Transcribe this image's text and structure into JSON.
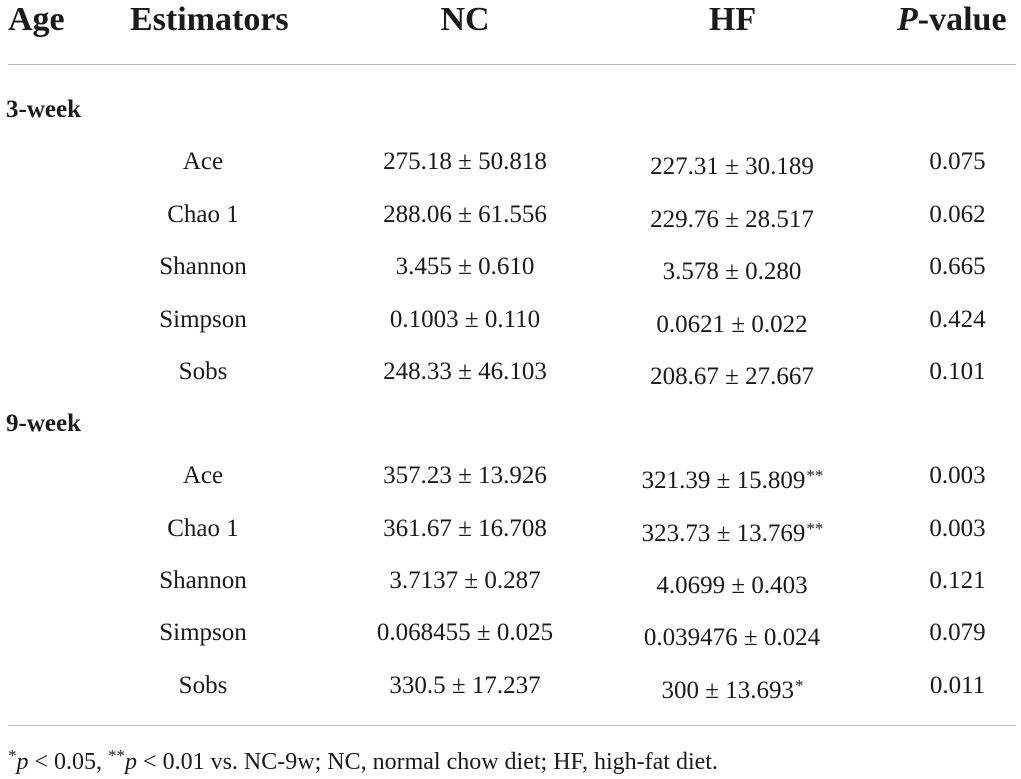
{
  "header": {
    "age": "Age",
    "estimators": "Estimators",
    "nc": "NC",
    "hf": "HF",
    "p_value_prefix": "P",
    "p_value_suffix": "-value"
  },
  "groups": [
    {
      "label": "3-week",
      "rows": [
        {
          "estimator": "Ace",
          "nc": "275.18 ± 50.818",
          "hf": "227.31 ± 30.189",
          "hf_mark": "",
          "p": "0.075"
        },
        {
          "estimator": "Chao 1",
          "nc": "288.06 ± 61.556",
          "hf": "229.76 ± 28.517",
          "hf_mark": "",
          "p": "0.062"
        },
        {
          "estimator": "Shannon",
          "nc": "3.455 ± 0.610",
          "hf": "3.578 ± 0.280",
          "hf_mark": "",
          "p": "0.665"
        },
        {
          "estimator": "Simpson",
          "nc": "0.1003 ± 0.110",
          "hf": "0.0621 ± 0.022",
          "hf_mark": "",
          "p": "0.424"
        },
        {
          "estimator": "Sobs",
          "nc": "248.33 ± 46.103",
          "hf": "208.67 ± 27.667",
          "hf_mark": "",
          "p": "0.101"
        }
      ]
    },
    {
      "label": "9-week",
      "rows": [
        {
          "estimator": "Ace",
          "nc": "357.23 ± 13.926",
          "hf": "321.39 ± 15.809",
          "hf_mark": "**",
          "p": "0.003"
        },
        {
          "estimator": "Chao 1",
          "nc": "361.67 ± 16.708",
          "hf": "323.73 ± 13.769",
          "hf_mark": "**",
          "p": "0.003"
        },
        {
          "estimator": "Shannon",
          "nc": "3.7137 ± 0.287",
          "hf": "4.0699 ± 0.403",
          "hf_mark": "",
          "p": "0.121"
        },
        {
          "estimator": "Simpson",
          "nc": "0.068455 ± 0.025",
          "hf": "0.039476 ± 0.024",
          "hf_mark": "",
          "p": "0.079"
        },
        {
          "estimator": "Sobs",
          "nc": "330.5 ± 17.237",
          "hf": "300 ± 13.693",
          "hf_mark": "*",
          "p": "0.011"
        }
      ]
    }
  ],
  "footnote": {
    "mark1": "*",
    "p1": "p",
    "text1": " < 0.05, ",
    "mark2": "**",
    "p2": "p",
    "text2": " < 0.01 vs. NC-9w; NC, normal chow diet; HF, high-fat diet."
  }
}
